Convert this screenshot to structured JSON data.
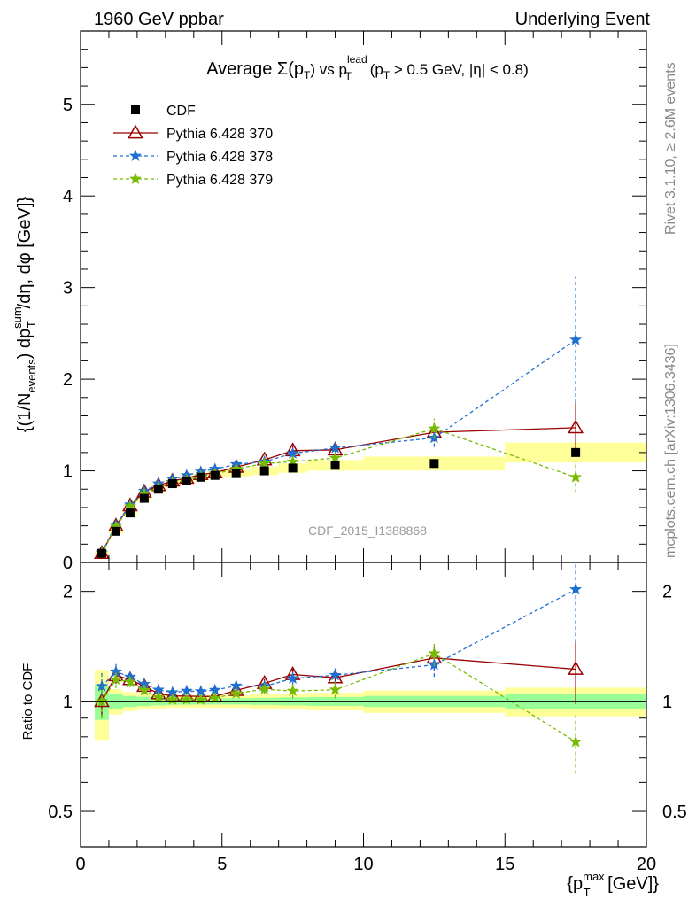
{
  "header": {
    "left_label": "1960 GeV ppbar",
    "right_label": "Underlying Event"
  },
  "side_labels": {
    "rivet": "Rivet 3.1.10, ≥ 2.6M events",
    "mcplots": "mcplots.cern.ch [arXiv:1306.3436]"
  },
  "watermark": "CDF_2015_I1388868",
  "chart_data": {
    "type": "scatter",
    "title": "Average Σ(p_T) vs p_T^lead (p_T > 0.5 GeV, |η| < 0.8)",
    "title_parts": {
      "prefix": "Average ",
      "sigma": "Σ(p",
      "sub_T": "T",
      "close": ")",
      "vs": " vs p",
      "sup_lead": "lead",
      "sub_T2": "T",
      "cut_open": " (p",
      "sub_T3": "T",
      "cut_text": " > 0.5 GeV, |η| < 0.8)"
    },
    "xlabel": "{p_T^max [GeV]}",
    "xlabel_parts": {
      "open": "{p",
      "sup": "max",
      "sub": "T",
      "close": " [GeV]}"
    },
    "ylabel": "{(1/N_events) dp_T^sum/dη, dφ [GeV]}",
    "ylabel_parts": {
      "a": "{(1/N",
      "sub_events": "events",
      "b": ") dp",
      "sup_sum": "sum",
      "sub_T": "T",
      "c": "/dη, dφ [GeV]}"
    },
    "ratio_ylabel": "Ratio to CDF",
    "xlim": [
      0,
      20
    ],
    "ylim_main": [
      0,
      5.8
    ],
    "ylim_ratio": [
      0.4,
      2.4
    ],
    "ratio_log_scale": true,
    "x_ticks": [
      0,
      5,
      10,
      15,
      20
    ],
    "x_tick_labels": [
      "0",
      "5",
      "10",
      "15",
      "20"
    ],
    "y_ticks_main": [
      0,
      1,
      2,
      3,
      4,
      5
    ],
    "y_tick_labels_main": [
      "0",
      "1",
      "2",
      "3",
      "4",
      "5"
    ],
    "y_ticks_ratio": [
      0.5,
      1,
      2
    ],
    "y_tick_labels_ratio": [
      "0.5",
      "1",
      "2"
    ],
    "legend_position": "top-left",
    "x": [
      0.75,
      1.25,
      1.75,
      2.25,
      2.75,
      3.25,
      3.75,
      4.25,
      4.75,
      5.5,
      6.5,
      7.5,
      9.0,
      12.5,
      17.5
    ],
    "x_bin_edges": [
      0.5,
      1.0,
      1.5,
      2.0,
      2.5,
      3.0,
      3.5,
      4.0,
      4.5,
      5.0,
      6.0,
      7.0,
      8.0,
      10.0,
      15.0,
      20.0
    ],
    "data": {
      "name": "CDF",
      "color": "#000000",
      "y": [
        0.1,
        0.34,
        0.54,
        0.7,
        0.8,
        0.86,
        0.89,
        0.93,
        0.95,
        0.97,
        1.0,
        1.03,
        1.06,
        1.08,
        1.2
      ],
      "stat_band_rel": [
        0.11,
        0.05,
        0.035,
        0.03,
        0.025,
        0.022,
        0.02,
        0.02,
        0.02,
        0.02,
        0.022,
        0.025,
        0.028,
        0.035,
        0.05
      ],
      "total_band_rel": [
        0.22,
        0.08,
        0.06,
        0.05,
        0.045,
        0.04,
        0.04,
        0.04,
        0.04,
        0.04,
        0.045,
        0.05,
        0.055,
        0.07,
        0.09
      ]
    },
    "series": [
      {
        "name": "Pythia 6.428 370",
        "color": "#990000",
        "marker": "triangle-open",
        "dash": "solid",
        "y": [
          0.1,
          0.4,
          0.62,
          0.77,
          0.84,
          0.89,
          0.92,
          0.96,
          0.98,
          1.04,
          1.12,
          1.22,
          1.23,
          1.42,
          1.47
        ],
        "err": [
          0.01,
          0.02,
          0.02,
          0.02,
          0.02,
          0.02,
          0.02,
          0.02,
          0.02,
          0.02,
          0.03,
          0.05,
          0.06,
          0.1,
          0.29
        ]
      },
      {
        "name": "Pythia 6.428 378",
        "color": "#1f6fd1",
        "marker": "star",
        "dash": "dashed",
        "y": [
          0.11,
          0.41,
          0.63,
          0.78,
          0.86,
          0.91,
          0.95,
          0.99,
          1.02,
          1.07,
          1.1,
          1.19,
          1.25,
          1.36,
          2.43
        ],
        "err": [
          0.01,
          0.02,
          0.02,
          0.02,
          0.02,
          0.02,
          0.02,
          0.02,
          0.02,
          0.02,
          0.03,
          0.05,
          0.07,
          0.1,
          0.69
        ]
      },
      {
        "name": "Pythia 6.428 379",
        "color": "#77bb00",
        "marker": "star",
        "dash": "dashed",
        "y": [
          0.1,
          0.39,
          0.61,
          0.75,
          0.82,
          0.87,
          0.9,
          0.94,
          0.97,
          1.02,
          1.08,
          1.1,
          1.14,
          1.46,
          0.93
        ],
        "err": [
          0.01,
          0.02,
          0.02,
          0.02,
          0.02,
          0.02,
          0.02,
          0.02,
          0.02,
          0.02,
          0.03,
          0.05,
          0.06,
          0.11,
          0.17
        ]
      }
    ]
  }
}
